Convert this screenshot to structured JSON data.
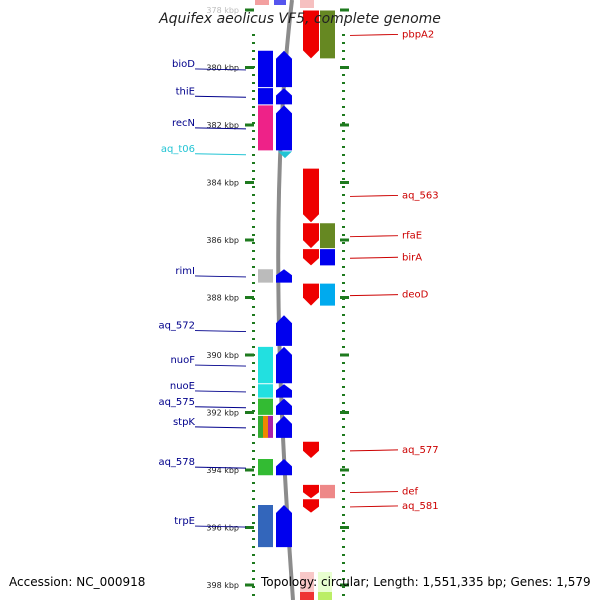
{
  "title": "Aquifex aeolicus VF5, complete genome",
  "footer": {
    "accession": "Accession: NC_000918",
    "topology": "Topology: circular; Length: 1,551,335 bp; Genes: 1,579"
  },
  "colors": {
    "minus_label": "#00008b",
    "plus_label": "#cc0000",
    "highlight_label": "#22c4d4",
    "ruler": "#1e7a1e",
    "backbone": "#8c8c8c"
  },
  "chart_data": {
    "type": "genome-map",
    "view_start_kbp": 378,
    "view_end_kbp": 398,
    "ticks": [
      "378 kbp",
      "380 kbp",
      "382 kbp",
      "384 kbp",
      "386 kbp",
      "388 kbp",
      "390 kbp",
      "392 kbp",
      "394 kbp",
      "396 kbp",
      "398 kbp"
    ],
    "tick_values_kbp": [
      378,
      380,
      382,
      384,
      386,
      388,
      390,
      392,
      394,
      396,
      398
    ],
    "minus_genes": [
      {
        "label": "bioD",
        "start_kbp": 379.4,
        "end_kbp": 380.7
      },
      {
        "label": "thiE",
        "start_kbp": 380.7,
        "end_kbp": 381.3
      },
      {
        "label": "recN",
        "start_kbp": 381.3,
        "end_kbp": 382.9
      },
      {
        "label": "aq_t06",
        "start_kbp": 382.9,
        "end_kbp": 383.1,
        "highlight": true
      },
      {
        "label": "rimI",
        "start_kbp": 387.0,
        "end_kbp": 387.5
      },
      {
        "label": "aq_572",
        "start_kbp": 388.6,
        "end_kbp": 389.7
      },
      {
        "label": "nuoF",
        "start_kbp": 389.7,
        "end_kbp": 391.0
      },
      {
        "label": "nuoE",
        "start_kbp": 391.0,
        "end_kbp": 391.5
      },
      {
        "label": "aq_575",
        "start_kbp": 391.5,
        "end_kbp": 392.1
      },
      {
        "label": "stpK",
        "start_kbp": 392.1,
        "end_kbp": 392.9
      },
      {
        "label": "aq_578",
        "start_kbp": 393.6,
        "end_kbp": 394.2
      },
      {
        "label": "trpE",
        "start_kbp": 395.2,
        "end_kbp": 396.7
      }
    ],
    "plus_genes": [
      {
        "label": "pbpA2",
        "start_kbp": 378.0,
        "end_kbp": 379.7
      },
      {
        "label": "aq_563",
        "start_kbp": 383.5,
        "end_kbp": 385.4
      },
      {
        "label": "rfaE",
        "start_kbp": 385.4,
        "end_kbp": 386.3
      },
      {
        "label": "birA",
        "start_kbp": 386.3,
        "end_kbp": 386.9
      },
      {
        "label": "deoD",
        "start_kbp": 387.5,
        "end_kbp": 388.3
      },
      {
        "label": "aq_577",
        "start_kbp": 393.0,
        "end_kbp": 393.6
      },
      {
        "label": "def",
        "start_kbp": 394.5,
        "end_kbp": 395.0
      },
      {
        "label": "aq_581",
        "start_kbp": 395.0,
        "end_kbp": 395.5
      }
    ]
  }
}
